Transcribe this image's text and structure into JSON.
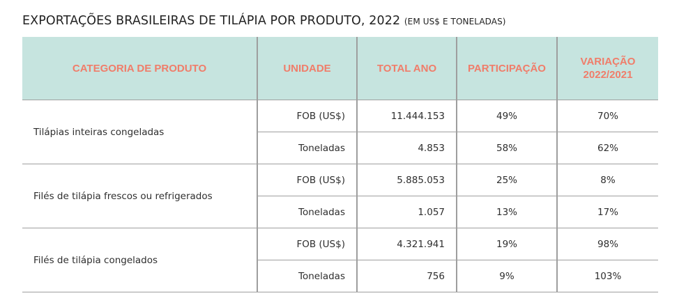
{
  "title": {
    "main": "EXPORTAÇÕES BRASILEIRAS DE TILÁPIA POR PRODUTO, 2022",
    "sub": "(EM US$ E TONELADAS)"
  },
  "table": {
    "headers": [
      "CATEGORIA DE PRODUTO",
      "UNIDADE",
      "TOTAL ANO",
      "PARTICIPAÇÃO",
      "VARIAÇÃO 2022/2021"
    ],
    "groups": [
      {
        "category": "Tilápias inteiras congeladas",
        "rows": [
          {
            "unit": "FOB (US$)",
            "total": "11.444.153",
            "share": "49%",
            "change": "70%"
          },
          {
            "unit": "Toneladas",
            "total": "4.853",
            "share": "58%",
            "change": "62%"
          }
        ]
      },
      {
        "category": "Filés de tilápia frescos ou refrigerados",
        "rows": [
          {
            "unit": "FOB (US$)",
            "total": "5.885.053",
            "share": "25%",
            "change": "8%"
          },
          {
            "unit": "Toneladas",
            "total": "1.057",
            "share": "13%",
            "change": "17%"
          }
        ]
      },
      {
        "category": "Filés de tilápia congelados",
        "rows": [
          {
            "unit": "FOB (US$)",
            "total": "4.321.941",
            "share": "19%",
            "change": "98%"
          },
          {
            "unit": "Toneladas",
            "total": "756",
            "share": "9%",
            "change": "103%"
          }
        ]
      }
    ]
  },
  "colors": {
    "header_background": "#c6e4df",
    "header_text": "#f07d6a",
    "grid_lines": "#9e9e9e"
  }
}
